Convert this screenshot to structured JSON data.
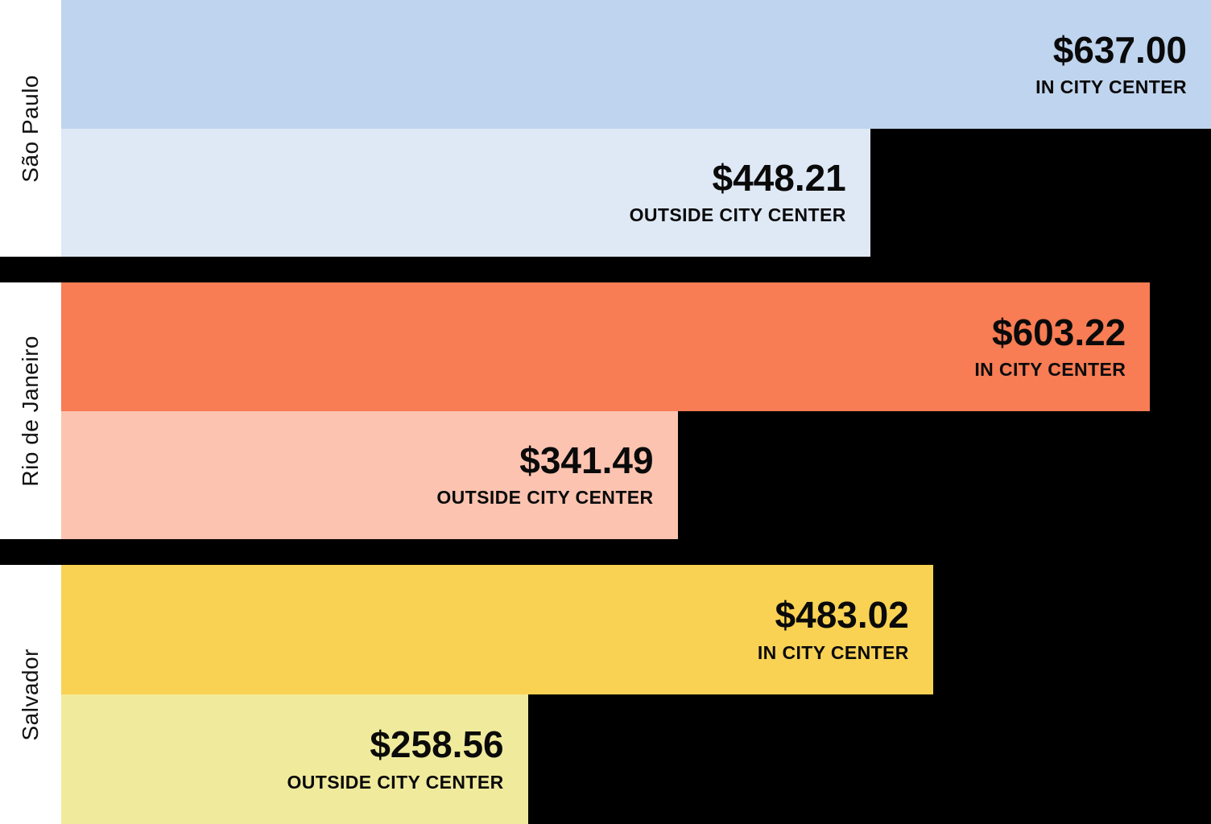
{
  "chart_data": {
    "type": "bar",
    "orientation": "horizontal",
    "title": "",
    "xlabel": "",
    "ylabel": "",
    "legend_position": "in-bar labels",
    "grid": false,
    "background_color": "#000000",
    "label_column_color": "#ffffff",
    "text_color": "#0a0a0a",
    "max_value": 637.0,
    "categories": [
      "São Paulo",
      "Rio de Janeiro",
      "Salvador"
    ],
    "series": [
      {
        "name": "In City Center",
        "values": [
          637.0,
          603.22,
          483.02
        ]
      },
      {
        "name": "Outside City Center",
        "values": [
          448.21,
          341.49,
          258.56
        ]
      }
    ],
    "groups": [
      {
        "city": "São Paulo",
        "bars": [
          {
            "label": "IN CITY CENTER",
            "price": "$637.00",
            "value": 637.0,
            "color": "#bfd4ee"
          },
          {
            "label": "OUTSIDE CITY CENTER",
            "price": "$448.21",
            "value": 448.21,
            "color": "#dfe9f5"
          }
        ]
      },
      {
        "city": "Rio de Janeiro",
        "bars": [
          {
            "label": "IN CITY CENTER",
            "price": "$603.22",
            "value": 603.22,
            "color": "#f87c54"
          },
          {
            "label": "OUTSIDE CITY CENTER",
            "price": "$341.49",
            "value": 341.49,
            "color": "#fbc3b0"
          }
        ]
      },
      {
        "city": "Salvador",
        "bars": [
          {
            "label": "IN CITY CENTER",
            "price": "$483.02",
            "value": 483.02,
            "color": "#f9d254"
          },
          {
            "label": "OUTSIDE CITY CENTER",
            "price": "$258.56",
            "value": 258.56,
            "color": "#f0eb9c"
          }
        ]
      }
    ]
  }
}
